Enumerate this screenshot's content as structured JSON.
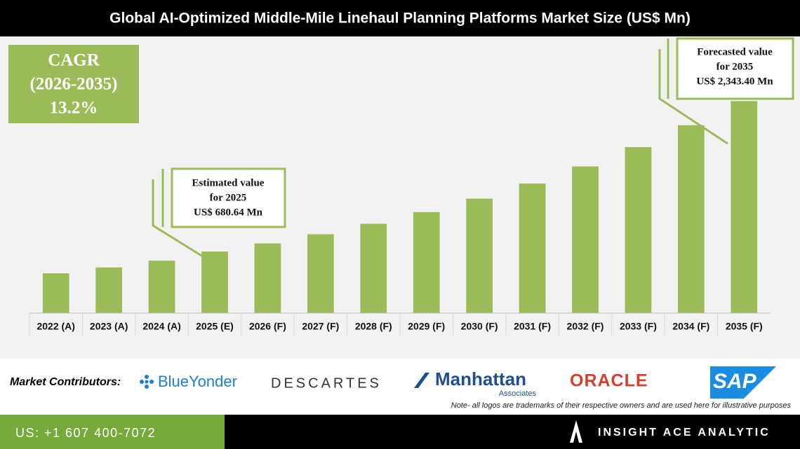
{
  "chart_data": {
    "type": "bar",
    "title": "Global AI-Optimized Middle-Mile Linehaul Planning Platforms Market Size (US$ Mn)",
    "categories": [
      "2022 (A)",
      "2023 (A)",
      "2024 (A)",
      "2025 (E)",
      "2026 (F)",
      "2027 (F)",
      "2028 (F)",
      "2029 (F)",
      "2030 (F)",
      "2031 (F)",
      "2032 (F)",
      "2033 (F)",
      "2034 (F)",
      "2035 (F)"
    ],
    "values": [
      440,
      505,
      580,
      680.64,
      770,
      872,
      987,
      1117,
      1265,
      1432,
      1621,
      1835,
      2077,
      2343.4
    ],
    "color": "#9bbb59",
    "ylim": [
      0,
      2400
    ],
    "cagr": {
      "label": "CAGR",
      "period": "(2026-2035)",
      "value": "13.2%"
    },
    "annotations": [
      {
        "lines": [
          "Estimated value",
          "for 2025",
          "US$ 680.64 Mn"
        ]
      },
      {
        "lines": [
          "Forecasted value",
          "for 2035",
          "US$ 2,343.40 Mn"
        ]
      }
    ]
  },
  "contributors": {
    "label": "Market Contributors:",
    "logos": [
      "BlueYonder",
      "DESCARTES",
      "Manhattan",
      "Associates",
      "ORACLE",
      "SAP"
    ],
    "note": "Note- all logos are trademarks of their respective owners and are used here for illustrative purposes"
  },
  "footer": {
    "phone": "US: +1 607 400-7072",
    "brand": "INSIGHT ACE ANALYTIC"
  }
}
